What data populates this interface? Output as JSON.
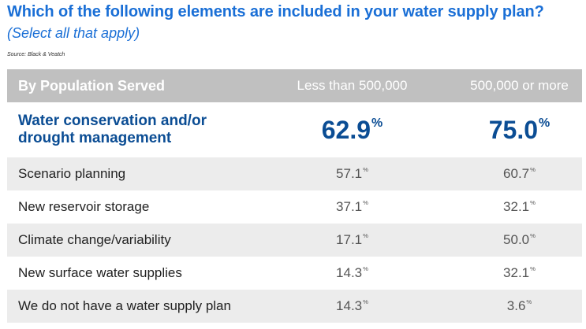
{
  "title": "Which of the following elements are included in your water supply plan?",
  "subtitle": "(Select all that apply)",
  "source": "Source: Black & Veatch",
  "chart_data": {
    "type": "table",
    "title": "Which of the following elements are included in your water supply plan?",
    "subtitle": "(Select all that apply)",
    "source": "Source: Black & Veatch",
    "columns": [
      "By Population Served",
      "Less than 500,000",
      "500,000 or more"
    ],
    "highlight": {
      "label": "Water conservation and/or drought management",
      "label_line1": "Water conservation and/or",
      "label_line2": "drought management",
      "values": [
        "62.9",
        "75.0"
      ]
    },
    "rows": [
      {
        "label": "Scenario planning",
        "values": [
          "57.1",
          "60.7"
        ]
      },
      {
        "label": "New reservoir storage",
        "values": [
          "37.1",
          "32.1"
        ]
      },
      {
        "label": "Climate change/variability",
        "values": [
          "17.1",
          "50.0"
        ]
      },
      {
        "label": "New surface water supplies",
        "values": [
          "14.3",
          "32.1"
        ]
      },
      {
        "label": "We do not have a water supply plan",
        "values": [
          "14.3",
          "3.6"
        ]
      }
    ],
    "unit": "%"
  },
  "colors": {
    "title": "#1a6fd6",
    "highlight": "#0b4d94",
    "header_bg": "#c0c0c0",
    "alt_row_bg": "#ececec"
  }
}
